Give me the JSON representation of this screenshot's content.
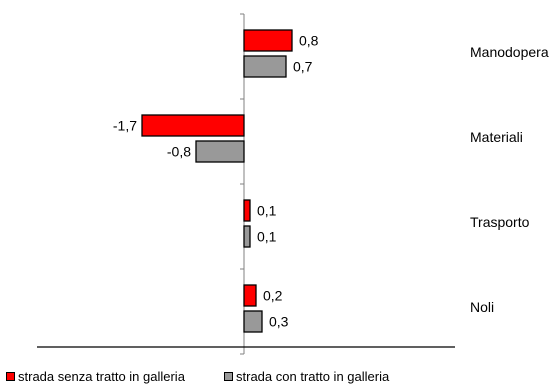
{
  "chart_data": {
    "type": "bar",
    "orientation": "horizontal",
    "categories": [
      "Manodopera",
      "Materiali",
      "Trasporto",
      "Noli"
    ],
    "series": [
      {
        "name": "strada senza tratto in galleria",
        "color": "#ff0000",
        "values": [
          0.8,
          -1.7,
          0.1,
          0.2
        ],
        "labels": [
          "0,8",
          "-1,7",
          "0,1",
          "0,2"
        ]
      },
      {
        "name": "strada con tratto in galleria",
        "color": "#999999",
        "values": [
          0.7,
          -0.8,
          0.1,
          0.3
        ],
        "labels": [
          "0,7",
          "-0,8",
          "0,1",
          "0,3"
        ]
      }
    ],
    "legend_position": "bottom",
    "grid": false
  }
}
